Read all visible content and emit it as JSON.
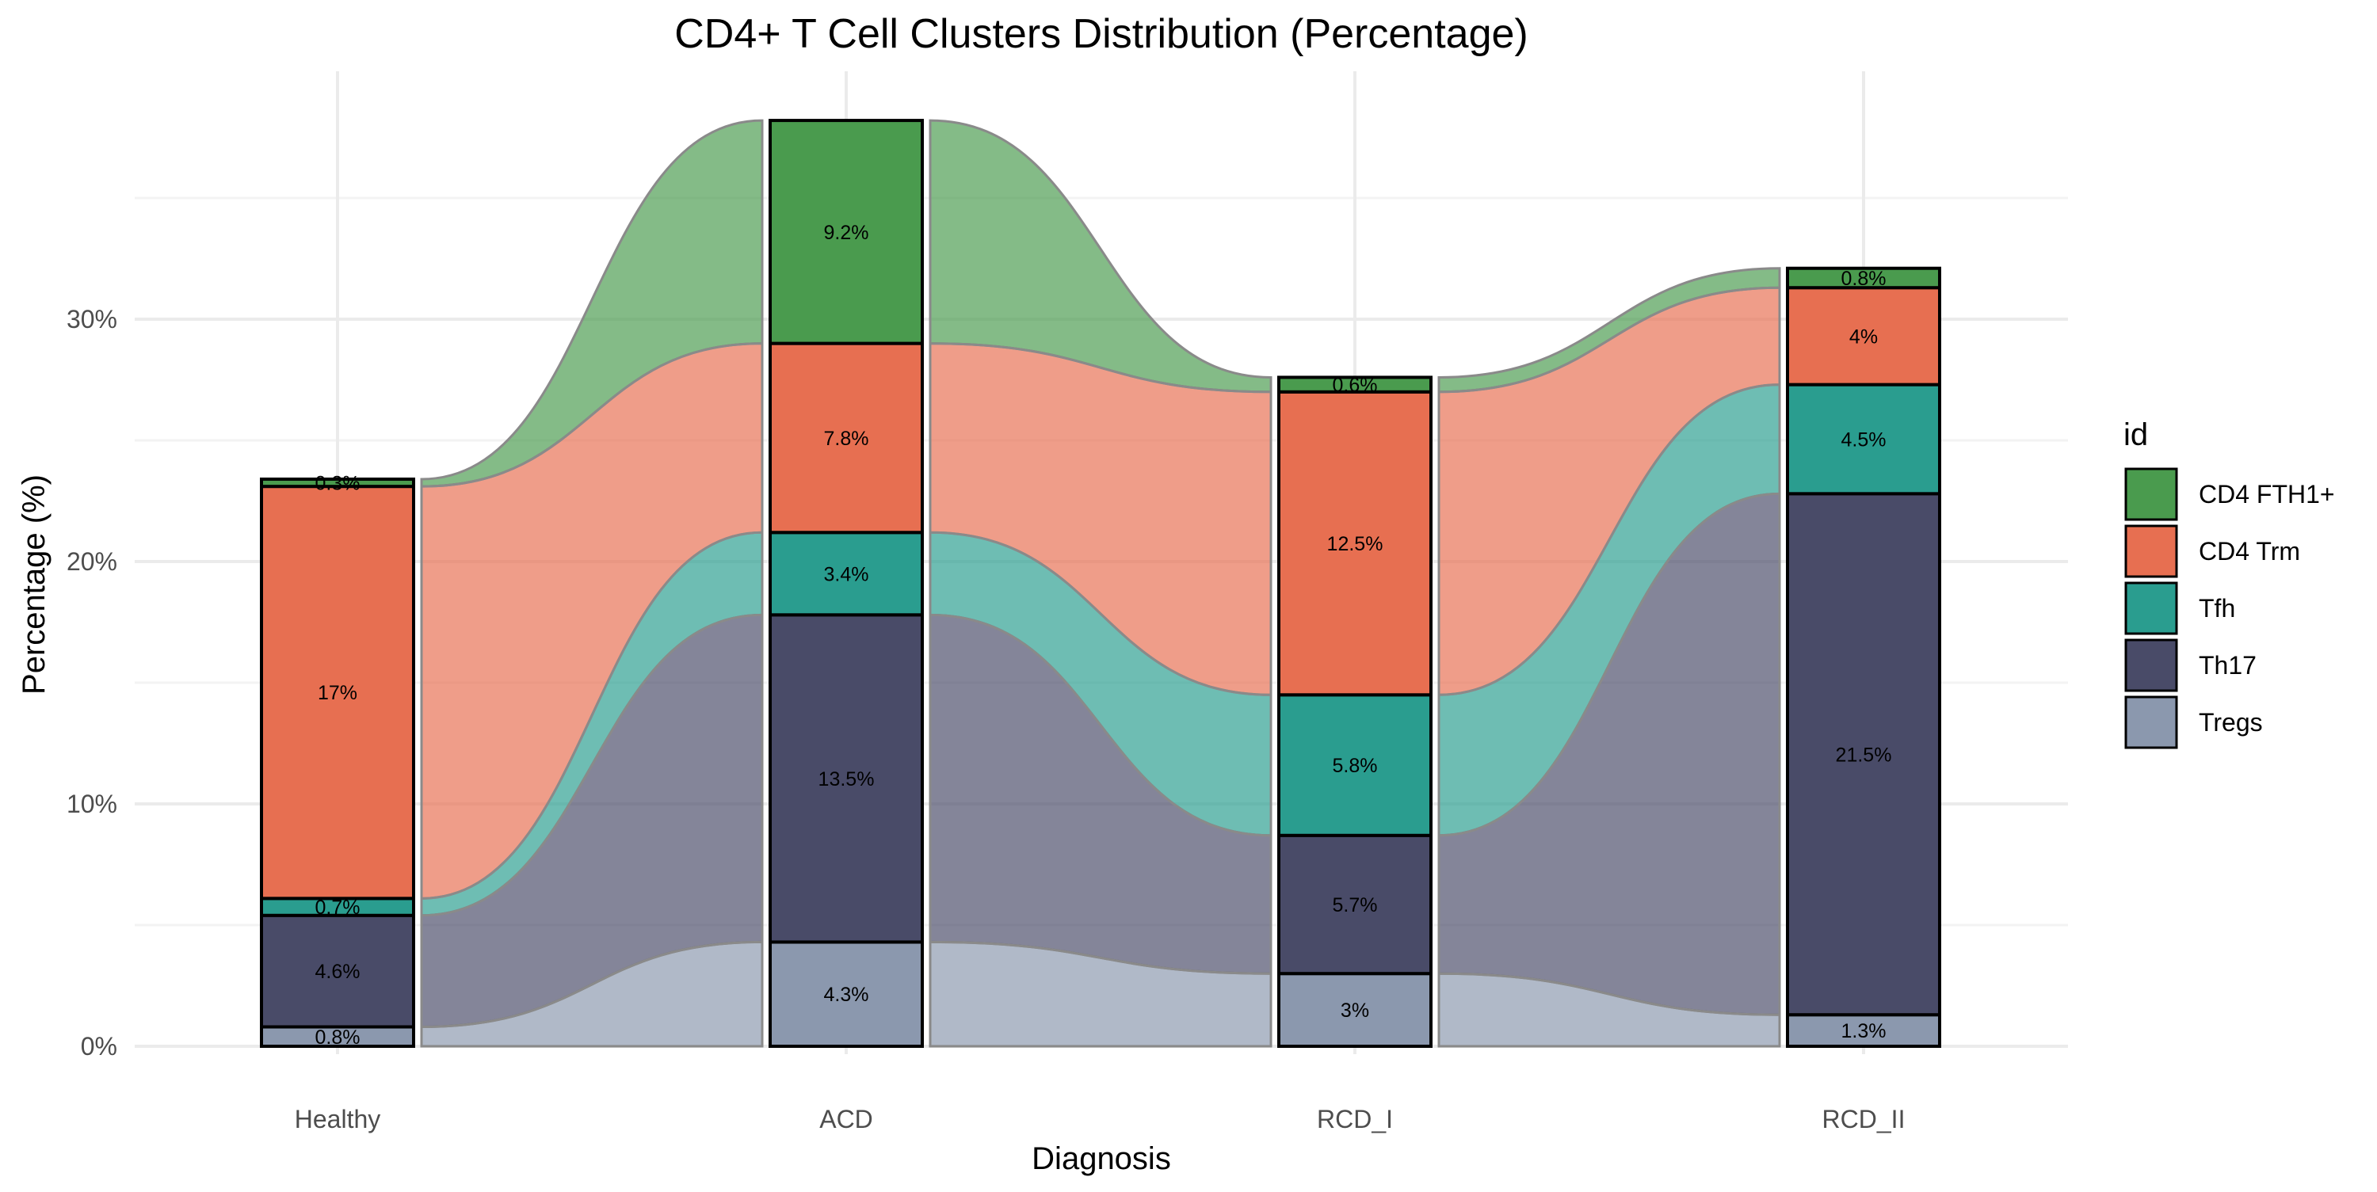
{
  "chart_data": {
    "type": "bar",
    "stacked": true,
    "flows_between_bars": true,
    "title": "CD4+ T Cell Clusters Distribution (Percentage)",
    "xlabel": "Diagnosis",
    "ylabel": "Percentage (%)",
    "categories": [
      "Healthy",
      "ACD",
      "RCD_I",
      "RCD_II"
    ],
    "ylim": [
      0,
      38
    ],
    "yticks": [
      0,
      10,
      20,
      30
    ],
    "ytick_labels": [
      "0%",
      "10%",
      "20%",
      "30%"
    ],
    "grid": true,
    "legend_title": "id",
    "legend_position": "right",
    "series": [
      {
        "name": "Tregs",
        "color": "#8b98ae",
        "values": [
          0.8,
          4.3,
          3.0,
          1.3
        ],
        "labels": [
          "0.8%",
          "4.3%",
          "3%",
          "1.3%"
        ]
      },
      {
        "name": "Th17",
        "color": "#494b68",
        "values": [
          4.6,
          13.5,
          5.7,
          21.5
        ],
        "labels": [
          "4.6%",
          "13.5%",
          "5.7%",
          "21.5%"
        ]
      },
      {
        "name": "Tfh",
        "color": "#2a9d8f",
        "values": [
          0.7,
          3.4,
          5.8,
          4.5
        ],
        "labels": [
          "0.7%",
          "3.4%",
          "5.8%",
          "4.5%"
        ]
      },
      {
        "name": "CD4 Trm",
        "color": "#e76f51",
        "values": [
          17.0,
          7.8,
          12.5,
          4.0
        ],
        "labels": [
          "17%",
          "7.8%",
          "12.5%",
          "4%"
        ]
      },
      {
        "name": "CD4 FTH1+",
        "color": "#4a9b4e",
        "values": [
          0.3,
          9.2,
          0.6,
          0.8
        ],
        "labels": [
          "0.3%",
          "9.2%",
          "0.6%",
          "0.8%"
        ]
      }
    ],
    "legend_order": [
      "CD4 FTH1+",
      "CD4 Trm",
      "Tfh",
      "Th17",
      "Tregs"
    ]
  }
}
